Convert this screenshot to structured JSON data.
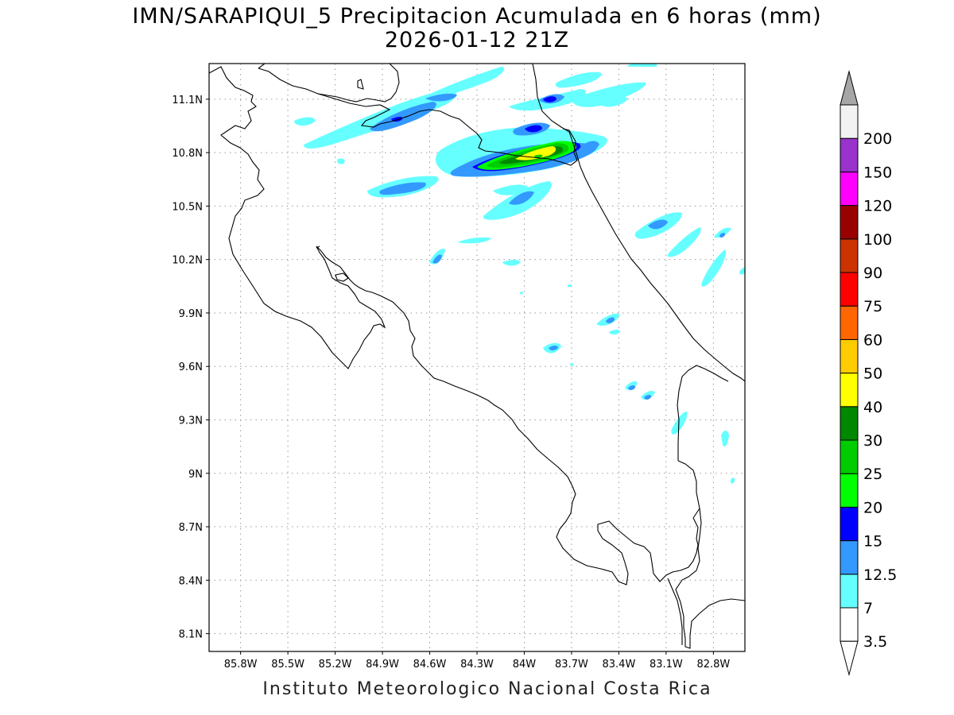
{
  "title": {
    "line1": "IMN/SARAPIQUI_5 Precipitacion Acumulada en 6 horas (mm)",
    "line2": "2026-01-12 21Z"
  },
  "footer": "Instituto Meteorologico Nacional Costa Rica",
  "map": {
    "lon_range": [
      -86.0,
      -82.6
    ],
    "lat_range": [
      8.0,
      11.3
    ],
    "lon_ticks": [
      "85.8W",
      "85.5W",
      "85.2W",
      "84.9W",
      "84.6W",
      "84.3W",
      "84W",
      "83.7W",
      "83.4W",
      "83.1W",
      "82.8W"
    ],
    "lat_ticks": [
      "11.1N",
      "10.8N",
      "10.5N",
      "10.2N",
      "9.9N",
      "9.6N",
      "9.3N",
      "9N",
      "8.7N",
      "8.4N",
      "8.1N"
    ],
    "grid": "dotted"
  },
  "legend": {
    "labels": [
      "3.5",
      "7",
      "12.5",
      "15",
      "20",
      "25",
      "30",
      "40",
      "50",
      "60",
      "75",
      "90",
      "100",
      "120",
      "150",
      "200"
    ],
    "colors": [
      "#ffffff",
      "#66ffff",
      "#3399ff",
      "#0000ff",
      "#00ff00",
      "#00cc00",
      "#008800",
      "#ffff00",
      "#ffcc00",
      "#ff6600",
      "#ff0000",
      "#cc3300",
      "#990000",
      "#ff00ff",
      "#9933cc",
      "#f2f2f2"
    ],
    "extend_top_color": "#a6a6a6",
    "extend_bottom_color": "#ffffff"
  }
}
